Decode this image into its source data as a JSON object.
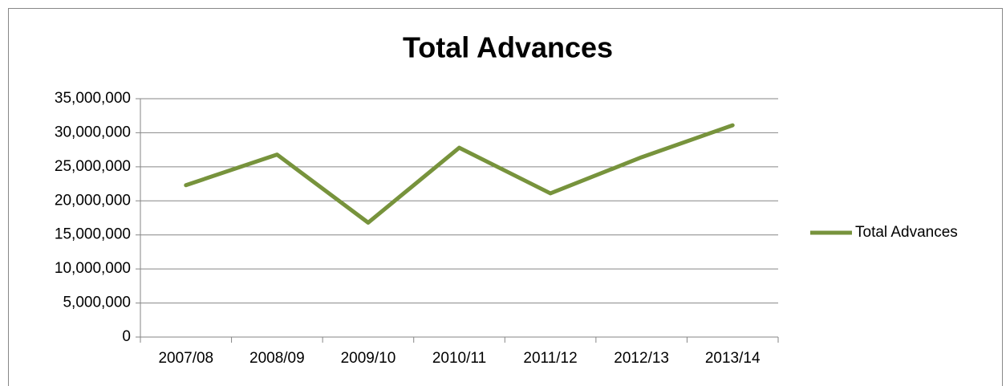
{
  "chart_data": {
    "type": "line",
    "title": "Total Advances",
    "categories": [
      "2007/08",
      "2008/09",
      "2009/10",
      "2010/11",
      "2011/12",
      "2012/13",
      "2013/14"
    ],
    "series": [
      {
        "name": "Total Advances",
        "color": "#77933c",
        "values": [
          22300000,
          26800000,
          16800000,
          27800000,
          21100000,
          26400000,
          31100000
        ]
      }
    ],
    "ylim": [
      0,
      35000000
    ],
    "yticks": [
      0,
      {
        "value": 5000000,
        "label": "5,000,000"
      },
      {
        "value": 10000000,
        "label": "10,000,000"
      },
      {
        "value": 15000000,
        "label": "15,000,000"
      },
      {
        "value": 20000000,
        "label": "20,000,000"
      },
      {
        "value": 25000000,
        "label": "25,000,000"
      },
      {
        "value": 30000000,
        "label": "30,000,000"
      },
      {
        "value": 35000000,
        "label": "35,000,000"
      }
    ],
    "grid": true,
    "legend": "right"
  }
}
